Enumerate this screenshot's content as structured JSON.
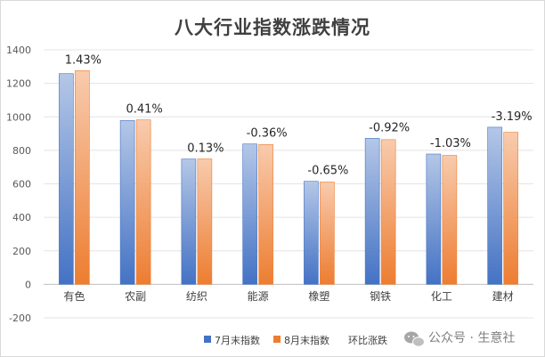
{
  "chart_data": {
    "type": "bar",
    "title": "八大行业指数涨跌情况",
    "categories": [
      "有色",
      "农副",
      "纺织",
      "能源",
      "橡塑",
      "钢铁",
      "化工",
      "建材"
    ],
    "series": [
      {
        "name": "7月末指数",
        "values": [
          1258,
          978,
          748,
          838,
          615,
          872,
          778,
          938
        ],
        "color": "#4472c4"
      },
      {
        "name": "8月末指数",
        "values": [
          1276,
          982,
          749,
          835,
          611,
          864,
          770,
          908
        ],
        "color": "#ed7d31"
      }
    ],
    "line_series": {
      "name": "环比涨跌",
      "labels": [
        "1.43%",
        "0.41%",
        "0.13%",
        "-0.36%",
        "-0.65%",
        "-0.92%",
        "-1.03%",
        "-3.19%"
      ]
    },
    "ylim": [
      -200,
      1400
    ],
    "yticks": [
      1400,
      1200,
      1000,
      800,
      600,
      400,
      200,
      0,
      -200
    ],
    "grid": true,
    "legend_position": "bottom"
  },
  "watermark": {
    "text": "公众号 · 生意社",
    "icon": "wechat-icon"
  }
}
